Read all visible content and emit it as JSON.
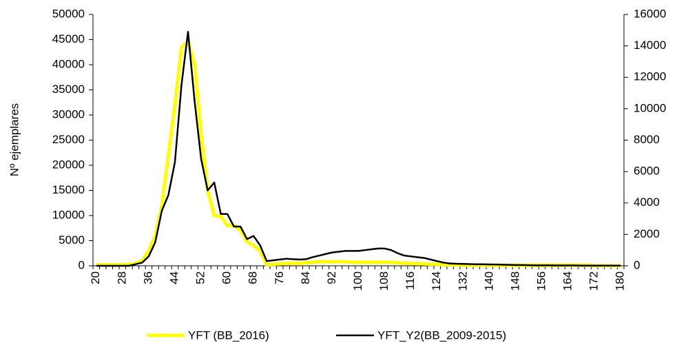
{
  "chart_data": {
    "type": "line",
    "y_label": "Nº ejemplares",
    "categories": [
      20,
      null,
      null,
      null,
      28,
      null,
      null,
      null,
      36,
      null,
      null,
      null,
      44,
      null,
      null,
      null,
      52,
      null,
      null,
      null,
      60,
      null,
      null,
      null,
      68,
      null,
      null,
      null,
      76,
      null,
      null,
      null,
      84,
      null,
      null,
      null,
      92,
      null,
      null,
      null,
      100,
      null,
      null,
      null,
      108,
      null,
      null,
      null,
      116,
      null,
      null,
      null,
      124,
      null,
      null,
      null,
      132,
      null,
      null,
      null,
      140,
      null,
      null,
      null,
      148,
      null,
      null,
      null,
      156,
      null,
      null,
      null,
      164,
      null,
      null,
      null,
      172,
      null,
      null,
      null,
      180
    ],
    "series": [
      {
        "name": "YFT (BB_2016)",
        "color": "#ffff00",
        "values": [
          200,
          200,
          200,
          200,
          200,
          300,
          500,
          1000,
          3000,
          6000,
          12000,
          22000,
          32000,
          43500,
          44500,
          40000,
          26000,
          15000,
          10000,
          9800,
          8000,
          8000,
          7000,
          4800,
          4000,
          3000,
          200,
          300,
          400,
          500,
          500,
          500,
          600,
          700,
          800,
          800,
          800,
          800,
          800,
          700,
          700,
          700,
          700,
          700,
          700,
          700,
          600,
          500,
          500,
          400,
          400,
          300,
          300,
          200,
          200,
          200,
          100,
          100,
          100,
          100,
          100,
          100,
          100,
          100,
          100,
          100,
          100,
          100,
          100,
          100,
          100,
          100,
          100,
          100,
          100,
          100,
          0,
          0,
          0,
          0,
          0
        ]
      },
      {
        "name": "YFT_Y2(BB_2009-2015)",
        "color": "#000000",
        "axis": "y2",
        "values": [
          0,
          0,
          0,
          0,
          0,
          0,
          100,
          200,
          600,
          1500,
          3500,
          4500,
          6600,
          11500,
          14900,
          10500,
          6800,
          4800,
          5300,
          3300,
          3300,
          2500,
          2500,
          1700,
          1900,
          1300,
          300,
          350,
          400,
          450,
          420,
          400,
          420,
          550,
          650,
          750,
          850,
          900,
          950,
          950,
          950,
          1000,
          1050,
          1100,
          1100,
          1000,
          800,
          650,
          600,
          550,
          500,
          400,
          300,
          200,
          150,
          130,
          120,
          110,
          100,
          100,
          90,
          80,
          70,
          60,
          50,
          50,
          40,
          30,
          30,
          30,
          20,
          20,
          20,
          20,
          10,
          10,
          10,
          10,
          10,
          10,
          10
        ]
      }
    ],
    "ylim": [
      0,
      50000
    ],
    "yticks": [
      0,
      5000,
      10000,
      15000,
      20000,
      25000,
      30000,
      35000,
      40000,
      45000,
      50000
    ],
    "y2lim": [
      0,
      16000
    ],
    "y2ticks": [
      0,
      2000,
      4000,
      6000,
      8000,
      10000,
      12000,
      14000,
      16000
    ],
    "legend": "bottom"
  }
}
